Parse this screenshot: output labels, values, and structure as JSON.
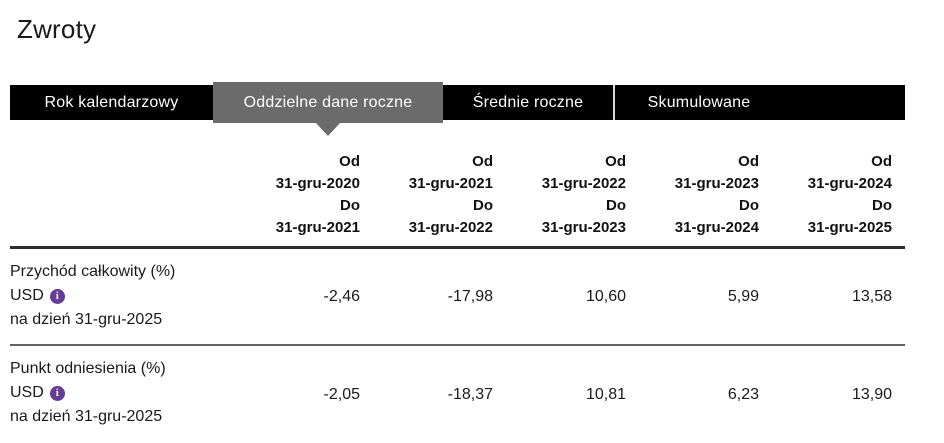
{
  "page": {
    "title": "Zwroty"
  },
  "tabs": {
    "items": [
      {
        "label": "Rok kalendarzowy",
        "selected": false
      },
      {
        "label": "Oddzielne dane roczne",
        "selected": true
      },
      {
        "label": "Średnie roczne",
        "selected": false
      },
      {
        "label": "Skumulowane",
        "selected": false
      }
    ]
  },
  "table": {
    "columns": [
      {
        "from_label": "Od",
        "from_date": "31-gru-2020",
        "to_label": "Do",
        "to_date": "31-gru-2021"
      },
      {
        "from_label": "Od",
        "from_date": "31-gru-2021",
        "to_label": "Do",
        "to_date": "31-gru-2022"
      },
      {
        "from_label": "Od",
        "from_date": "31-gru-2022",
        "to_label": "Do",
        "to_date": "31-gru-2023"
      },
      {
        "from_label": "Od",
        "from_date": "31-gru-2023",
        "to_label": "Do",
        "to_date": "31-gru-2024"
      },
      {
        "from_label": "Od",
        "from_date": "31-gru-2024",
        "to_label": "Do",
        "to_date": "31-gru-2025"
      }
    ],
    "rows": [
      {
        "name": "Przychód całkowity (%)",
        "currency": "USD",
        "info_icon": "info-icon",
        "as_of": "na dzień 31-gru-2025",
        "values": [
          "-2,46",
          "-17,98",
          "10,60",
          "5,99",
          "13,58"
        ]
      },
      {
        "name": "Punkt odniesienia (%)",
        "currency": "USD",
        "info_icon": "info-icon",
        "as_of": "na dzień 31-gru-2025",
        "values": [
          "-2,05",
          "-18,37",
          "10,81",
          "6,23",
          "13,90"
        ]
      }
    ]
  },
  "icons": {
    "info": "i"
  },
  "colors": {
    "tab_inactive_bg": "#000000",
    "tab_active_bg": "#6b6b6b",
    "tab_text": "#ffffff",
    "info_icon_bg": "#663d96",
    "header_rule": "#2e2e2e",
    "row_rule": "#636363",
    "text": "#1a1a1a"
  }
}
